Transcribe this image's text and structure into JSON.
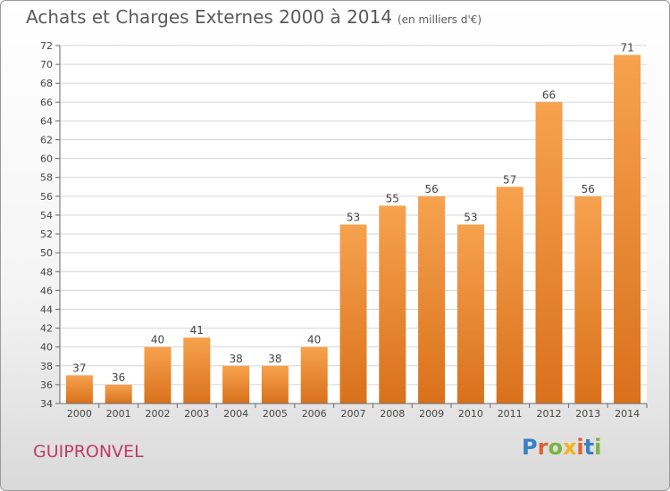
{
  "header": {
    "title": "Achats et Charges Externes 2000 à 2014",
    "subtitle": "(en milliers d'€)"
  },
  "footer": {
    "city": "GUIPRONVEL",
    "brand": "Proxiti",
    "brand_letters": [
      "P",
      "r",
      "o",
      "x",
      "i",
      "t",
      "i"
    ]
  },
  "colors": {
    "bar_light": "#f7a24e",
    "bar_dark": "#d9711c",
    "grid": "#d6d6d6",
    "brand": [
      "#3a7fc4",
      "#e0612e",
      "#79b540",
      "#f2b41c",
      "#e0612e",
      "#3a7fc4",
      "#79b540"
    ]
  },
  "chart_data": {
    "type": "bar",
    "title": "Achats et Charges Externes 2000 à 2014",
    "subtitle": "(en milliers d'€)",
    "categories": [
      "2000",
      "2001",
      "2002",
      "2003",
      "2004",
      "2005",
      "2006",
      "2007",
      "2008",
      "2009",
      "2010",
      "2011",
      "2012",
      "2013",
      "2014"
    ],
    "values": [
      37,
      36,
      40,
      41,
      38,
      38,
      40,
      53,
      55,
      56,
      53,
      57,
      66,
      56,
      71
    ],
    "ylim": [
      34,
      72
    ],
    "yticks": [
      34,
      36,
      38,
      40,
      42,
      44,
      46,
      48,
      50,
      52,
      54,
      56,
      58,
      60,
      62,
      64,
      66,
      68,
      70,
      72
    ],
    "xlabel": "",
    "ylabel": "",
    "grid": true
  }
}
